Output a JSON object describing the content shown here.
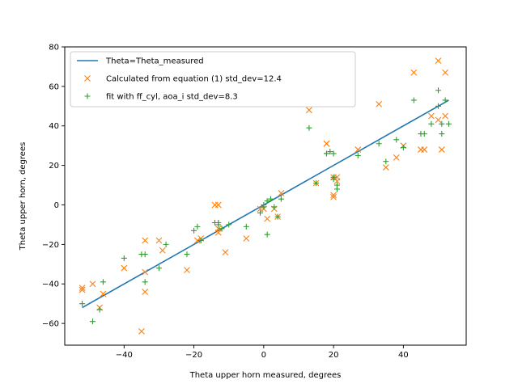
{
  "chart_data": {
    "type": "scatter",
    "xlabel": "Theta upper horn measured, degrees",
    "ylabel": "Theta upper horn, degrees",
    "xlim": [
      -57,
      58
    ],
    "ylim": [
      -71,
      80
    ],
    "xticks": [
      -40,
      -20,
      0,
      20,
      40
    ],
    "yticks": [
      -60,
      -40,
      -20,
      0,
      20,
      40,
      60,
      80
    ],
    "legend_position": "top-left",
    "series": [
      {
        "name": "Theta=Theta_measured",
        "kind": "line",
        "color": "#1f77b4",
        "x": [
          -52,
          53
        ],
        "y": [
          -52,
          53
        ]
      },
      {
        "name": "Calculated from equation (1) std_dev=12.4",
        "kind": "marker-x",
        "color": "#ff7f0e",
        "x": [
          -52,
          -52,
          -49,
          -47,
          -46,
          -40,
          -35,
          -34,
          -34,
          -34,
          -30,
          -29,
          -22,
          -19,
          -18,
          -14,
          -13,
          -13,
          -13,
          -11,
          -5,
          -1,
          0,
          1,
          3,
          4,
          5,
          13,
          15,
          18,
          18,
          20,
          20,
          20,
          21,
          21,
          27,
          33,
          35,
          38,
          40,
          43,
          45,
          46,
          48,
          50,
          50,
          51,
          52,
          52
        ],
        "y": [
          -42,
          -43,
          -40,
          -52,
          -45,
          -32,
          -64,
          -44,
          -34,
          -18,
          -18,
          -23,
          -33,
          -18,
          -17,
          0,
          0,
          -14,
          -12,
          -24,
          -17,
          -2,
          -2,
          -7,
          -2,
          -6,
          6,
          48,
          11,
          31,
          31,
          14,
          5,
          4,
          14,
          12,
          28,
          51,
          19,
          24,
          30,
          67,
          28,
          28,
          45,
          73,
          43,
          28,
          67,
          45
        ]
      },
      {
        "name": "fit with ff_cyl, aoa_i std_dev=8.3",
        "kind": "marker-plus",
        "color": "#2ca02c",
        "x": [
          -52,
          -49,
          -47,
          -46,
          -40,
          -35,
          -34,
          -34,
          -30,
          -28,
          -22,
          -20,
          -19,
          -18,
          -14,
          -13,
          -13,
          -12,
          -10,
          -5,
          -1,
          0,
          0,
          1,
          1,
          2,
          3,
          4,
          5,
          13,
          15,
          18,
          18,
          19,
          20,
          20,
          20,
          21,
          21,
          27,
          33,
          35,
          38,
          40,
          43,
          45,
          46,
          48,
          50,
          50,
          51,
          51,
          52,
          53
        ],
        "y": [
          -50,
          -59,
          -53,
          -39,
          -27,
          -25,
          -25,
          -39,
          -32,
          -20,
          -25,
          -13,
          -11,
          -18,
          -9,
          -10,
          -9,
          -12,
          -10,
          -11,
          -4,
          0,
          -1,
          -15,
          2,
          3,
          -1,
          -6,
          3,
          39,
          11,
          26,
          26,
          27,
          13,
          14,
          26,
          10,
          8,
          25,
          31,
          22,
          33,
          29,
          53,
          36,
          36,
          41,
          58,
          50,
          36,
          41,
          53,
          41
        ]
      }
    ]
  }
}
